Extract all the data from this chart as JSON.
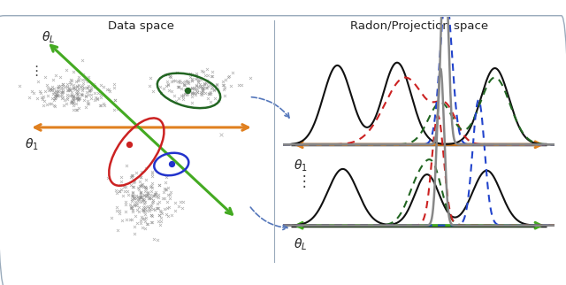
{
  "title_left": "Data space",
  "title_right": "Radon/Projection space",
  "bg_color": "#ffffff",
  "border_color": "#99aabb",
  "arrow_orange": "#E08020",
  "arrow_green": "#44aa22",
  "arrow_blue": "#5577bb",
  "cluster_color": "#888888",
  "ellipse_red": "#cc2222",
  "ellipse_blue": "#2233cc",
  "ellipse_green": "#226622",
  "dot_red": "#cc2222",
  "dot_blue": "#2233cc",
  "dot_green": "#226622",
  "curve_black": "#111111",
  "curve_red": "#cc2222",
  "curve_blue": "#2244cc",
  "curve_green": "#226622",
  "curve_gray": "#888888",
  "theta1_label": "$\\theta_1$",
  "thetaL_label": "$\\theta_L$",
  "fig_width": 6.4,
  "fig_height": 3.22,
  "dpi": 100
}
